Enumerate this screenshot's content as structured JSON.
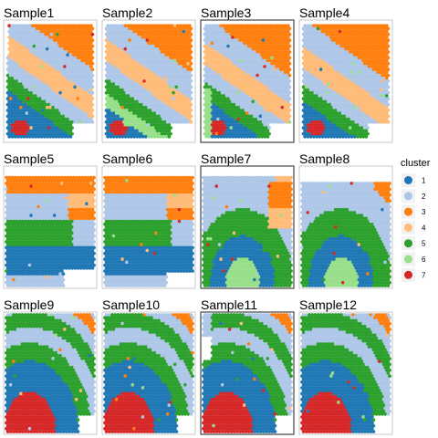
{
  "chart_data": {
    "type": "scatter",
    "description_kind": "spatial cluster maps",
    "panels": [
      {
        "title": "Sample1",
        "highlighted": false
      },
      {
        "title": "Sample2",
        "highlighted": false
      },
      {
        "title": "Sample3",
        "highlighted": true
      },
      {
        "title": "Sample4",
        "highlighted": false
      },
      {
        "title": "Sample5",
        "highlighted": false
      },
      {
        "title": "Sample6",
        "highlighted": false
      },
      {
        "title": "Sample7",
        "highlighted": true
      },
      {
        "title": "Sample8",
        "highlighted": false
      },
      {
        "title": "Sample9",
        "highlighted": false
      },
      {
        "title": "Sample10",
        "highlighted": false
      },
      {
        "title": "Sample11",
        "highlighted": true
      },
      {
        "title": "Sample12",
        "highlighted": false
      }
    ],
    "legend": {
      "title": "cluster",
      "position": "right",
      "items": [
        {
          "label": "1",
          "color": "#1f77b4"
        },
        {
          "label": "2",
          "color": "#aec7e8"
        },
        {
          "label": "3",
          "color": "#ff7f0e"
        },
        {
          "label": "4",
          "color": "#ffbb78"
        },
        {
          "label": "5",
          "color": "#2ca02c"
        },
        {
          "label": "6",
          "color": "#98df8a"
        },
        {
          "label": "7",
          "color": "#d62728"
        }
      ]
    },
    "grid": false,
    "axes_visible": false
  }
}
